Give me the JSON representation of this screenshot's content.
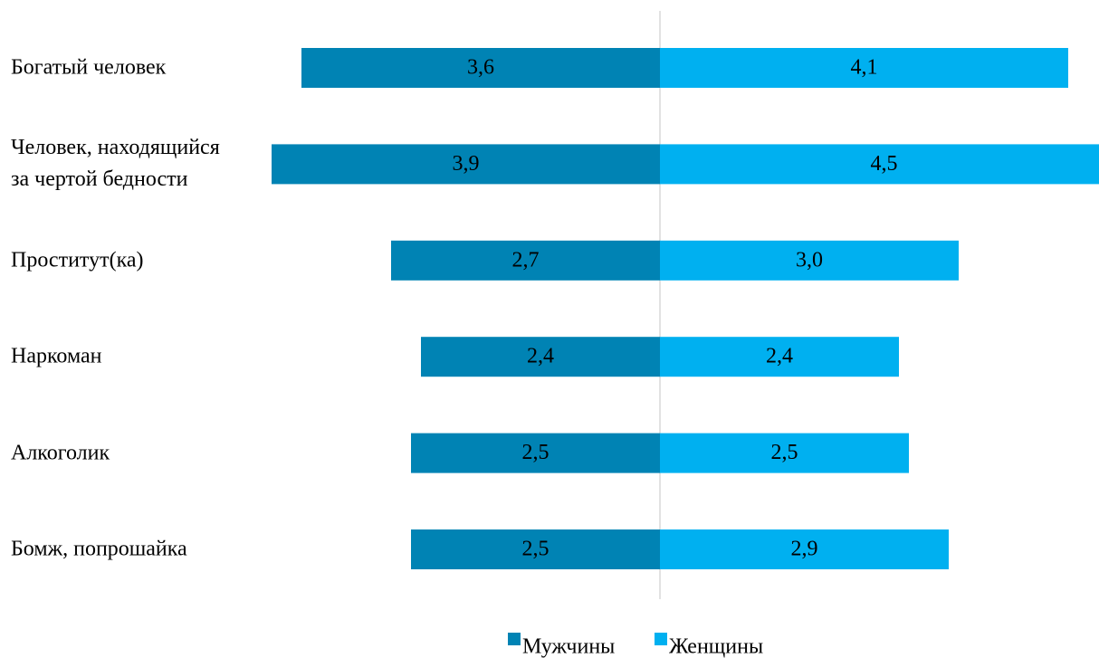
{
  "chart_data": {
    "type": "butterfly_bar",
    "categories": [
      "Богатый человек",
      "Человек, находящийся за чертой бедности",
      "Проститут(ка)",
      "Наркоман",
      "Алкоголик",
      "Бомж, попрошайка"
    ],
    "series": [
      {
        "name": "Мужчины",
        "color": "#0083b4",
        "side": "left",
        "values": [
          3.6,
          3.9,
          2.7,
          2.4,
          2.5,
          2.5
        ],
        "value_labels": [
          "3,6",
          "3,9",
          "2,7",
          "2,4",
          "2,5",
          "2,5"
        ]
      },
      {
        "name": "Женщины",
        "color": "#00b0f0",
        "side": "right",
        "values": [
          4.1,
          4.5,
          3.0,
          2.4,
          2.5,
          2.9
        ],
        "value_labels": [
          "4,1",
          "4,5",
          "3,0",
          "2,4",
          "2,5",
          "2,9"
        ]
      }
    ],
    "xlim": [
      0,
      4.5
    ],
    "legend": "bottom"
  }
}
